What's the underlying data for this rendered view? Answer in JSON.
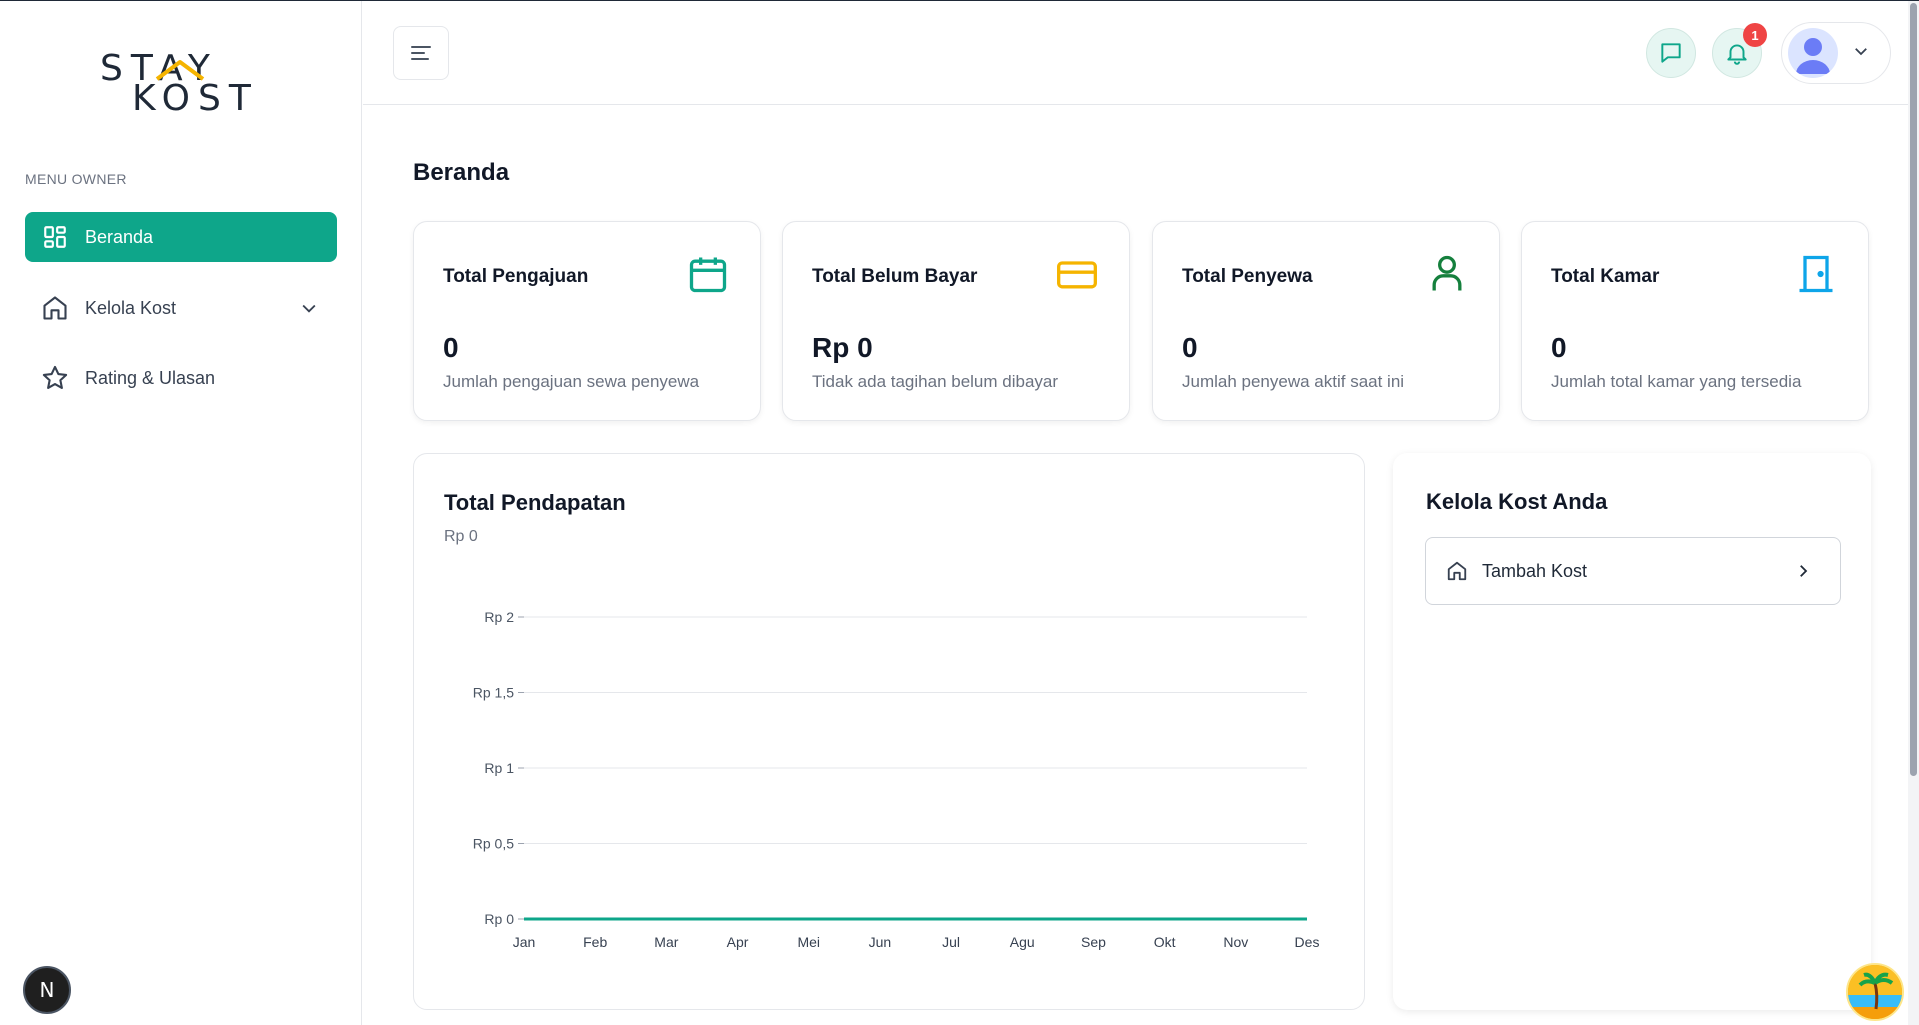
{
  "brand": {
    "line1": "STAY",
    "line2": "KOST"
  },
  "sidebar": {
    "heading": "MENU OWNER",
    "items": [
      {
        "label": "Beranda",
        "icon": "dashboard-icon",
        "active": true
      },
      {
        "label": "Kelola Kost",
        "icon": "home-icon",
        "active": false
      },
      {
        "label": "Rating & Ulasan",
        "icon": "star-icon",
        "active": false
      }
    ]
  },
  "header": {
    "notification_count": "1"
  },
  "page": {
    "title": "Beranda"
  },
  "stats": [
    {
      "title": "Total Pengajuan",
      "value": "0",
      "desc": "Jumlah pengajuan sewa penyewa",
      "icon": "calendar-icon",
      "color": "#0ea68a"
    },
    {
      "title": "Total Belum Bayar",
      "value": "Rp 0",
      "desc": "Tidak ada tagihan belum dibayar",
      "icon": "credit-card-icon",
      "color": "#f5b400"
    },
    {
      "title": "Total Penyewa",
      "value": "0",
      "desc": "Jumlah penyewa aktif saat ini",
      "icon": "user-icon",
      "color": "#15803d"
    },
    {
      "title": "Total Kamar",
      "value": "0",
      "desc": "Jumlah total kamar yang tersedia",
      "icon": "door-icon",
      "color": "#0ea5e9"
    }
  ],
  "revenue": {
    "title": "Total Pendapatan",
    "subtitle": "Rp 0"
  },
  "chart_data": {
    "type": "line",
    "categories": [
      "Jan",
      "Feb",
      "Mar",
      "Apr",
      "Mei",
      "Jun",
      "Jul",
      "Agu",
      "Sep",
      "Okt",
      "Nov",
      "Des"
    ],
    "series": [
      {
        "values": [
          0,
          0,
          0,
          0,
          0,
          0,
          0,
          0,
          0,
          0,
          0,
          0
        ],
        "color": "#0ea68a"
      }
    ],
    "yticks": [
      0,
      0.5,
      1,
      1.5,
      2
    ],
    "ytick_labels": [
      "Rp 0",
      "Rp 0,5",
      "Rp 1",
      "Rp 1,5",
      "Rp 2"
    ],
    "ylim": [
      0,
      2
    ],
    "grid": true,
    "title": "",
    "xlabel": "",
    "ylabel": ""
  },
  "manage": {
    "title": "Kelola Kost Anda",
    "add_label": "Tambah Kost"
  }
}
